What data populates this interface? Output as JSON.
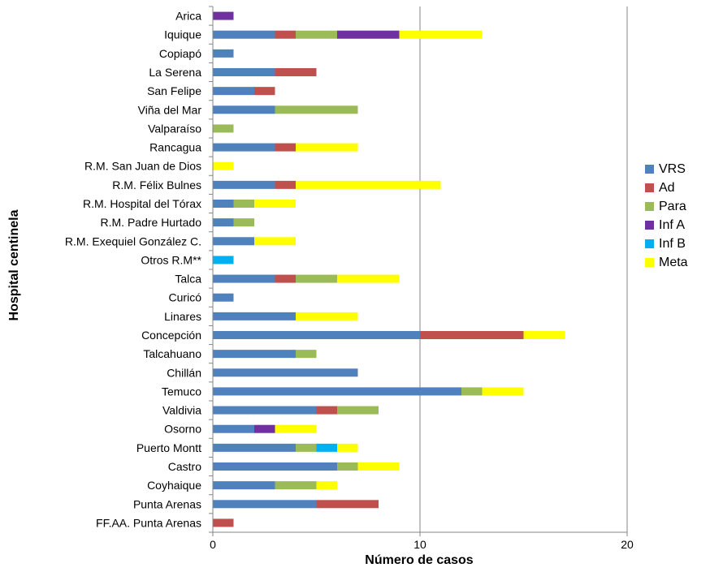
{
  "chart_data": {
    "type": "bar",
    "orientation": "horizontal",
    "stacked": true,
    "categories": [
      "Arica",
      "Iquique",
      "Copiapó",
      "La Serena",
      "San Felipe",
      "Viña del Mar",
      "Valparaíso",
      "Rancagua",
      "R.M. San Juan de Dios",
      "R.M. Félix Bulnes",
      "R.M. Hospital del Tórax",
      "R.M. Padre Hurtado",
      "R.M. Exequiel González C.",
      "Otros R.M**",
      "Talca",
      "Curicó",
      "Linares",
      "Concepción",
      "Talcahuano",
      "Chillán",
      "Temuco",
      "Valdivia",
      "Osorno",
      "Puerto Montt",
      "Castro",
      "Coyhaique",
      "Punta Arenas",
      "FF.AA. Punta Arenas"
    ],
    "series": [
      {
        "name": "VRS",
        "color": "#4F81BD",
        "values": [
          0,
          3,
          1,
          3,
          2,
          3,
          0,
          3,
          0,
          3,
          1,
          1,
          2,
          0,
          3,
          1,
          4,
          10,
          4,
          7,
          12,
          5,
          2,
          4,
          6,
          3,
          5,
          0
        ]
      },
      {
        "name": "Ad",
        "color": "#C0504D",
        "values": [
          0,
          1,
          0,
          2,
          1,
          0,
          0,
          1,
          0,
          1,
          0,
          0,
          0,
          0,
          1,
          0,
          0,
          5,
          0,
          0,
          0,
          1,
          0,
          0,
          0,
          0,
          3,
          1
        ]
      },
      {
        "name": "Para",
        "color": "#9BBB59",
        "values": [
          0,
          2,
          0,
          0,
          0,
          4,
          1,
          0,
          0,
          0,
          1,
          1,
          0,
          0,
          2,
          0,
          0,
          0,
          1,
          0,
          1,
          2,
          0,
          1,
          1,
          2,
          0,
          0
        ]
      },
      {
        "name": "Inf A",
        "color": "#7030A0",
        "values": [
          1,
          3,
          0,
          0,
          0,
          0,
          0,
          0,
          0,
          0,
          0,
          0,
          0,
          0,
          0,
          0,
          0,
          0,
          0,
          0,
          0,
          0,
          1,
          0,
          0,
          0,
          0,
          0
        ]
      },
      {
        "name": "Inf B",
        "color": "#00B0F0",
        "values": [
          0,
          0,
          0,
          0,
          0,
          0,
          0,
          0,
          0,
          0,
          0,
          0,
          0,
          1,
          0,
          0,
          0,
          0,
          0,
          0,
          0,
          0,
          0,
          1,
          0,
          0,
          0,
          0
        ]
      },
      {
        "name": "Meta",
        "color": "#FFFF00",
        "values": [
          0,
          4,
          0,
          0,
          0,
          0,
          0,
          3,
          1,
          7,
          2,
          0,
          2,
          0,
          3,
          0,
          3,
          2,
          0,
          0,
          2,
          0,
          2,
          1,
          2,
          1,
          0,
          0
        ]
      }
    ],
    "xlabel": "Número de casos",
    "ylabel": "Hospital  centinela",
    "xlim": [
      0,
      20
    ],
    "xticks": [
      0,
      10,
      20
    ],
    "grid": "vertical major",
    "legend_position": "right"
  }
}
